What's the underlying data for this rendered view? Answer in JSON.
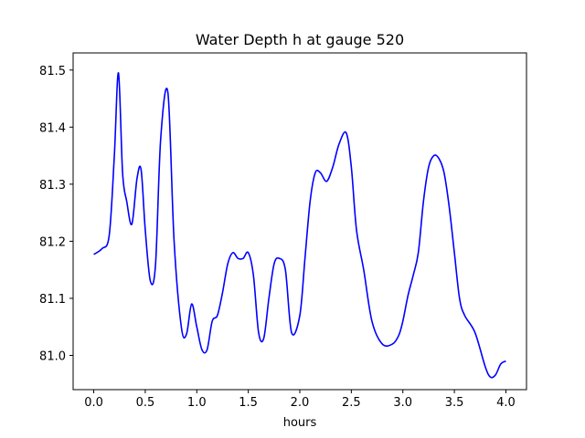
{
  "chart_data": {
    "type": "line",
    "title": "Water Depth h at gauge 520",
    "xlabel": "hours",
    "ylabel": "",
    "xlim": [
      -0.2,
      4.2
    ],
    "ylim": [
      80.94,
      81.53
    ],
    "xticks": [
      0.0,
      0.5,
      1.0,
      1.5,
      2.0,
      2.5,
      3.0,
      3.5,
      4.0
    ],
    "xtick_labels": [
      "0.0",
      "0.5",
      "1.0",
      "1.5",
      "2.0",
      "2.5",
      "3.0",
      "3.5",
      "4.0"
    ],
    "yticks": [
      81.0,
      81.1,
      81.2,
      81.3,
      81.4,
      81.5
    ],
    "ytick_labels": [
      "81.0",
      "81.1",
      "81.2",
      "81.3",
      "81.4",
      "81.5"
    ],
    "grid": false,
    "series": [
      {
        "color": "#0000ff",
        "x": [
          0.0,
          0.08,
          0.15,
          0.2,
          0.24,
          0.28,
          0.32,
          0.37,
          0.42,
          0.46,
          0.5,
          0.55,
          0.6,
          0.65,
          0.72,
          0.78,
          0.85,
          0.9,
          0.95,
          1.0,
          1.05,
          1.1,
          1.15,
          1.2,
          1.25,
          1.3,
          1.35,
          1.4,
          1.45,
          1.5,
          1.55,
          1.6,
          1.65,
          1.7,
          1.75,
          1.8,
          1.86,
          1.92,
          2.0,
          2.05,
          2.1,
          2.15,
          2.2,
          2.26,
          2.32,
          2.38,
          2.45,
          2.5,
          2.55,
          2.62,
          2.7,
          2.8,
          2.9,
          2.96,
          3.0,
          3.05,
          3.1,
          3.15,
          3.2,
          3.25,
          3.3,
          3.35,
          3.4,
          3.45,
          3.5,
          3.55,
          3.6,
          3.7,
          3.8,
          3.85,
          3.9,
          3.95,
          4.0
        ],
        "y": [
          81.177,
          81.187,
          81.21,
          81.35,
          81.495,
          81.32,
          81.27,
          81.23,
          81.31,
          81.325,
          81.22,
          81.13,
          81.16,
          81.38,
          81.46,
          81.2,
          81.05,
          81.037,
          81.09,
          81.05,
          81.01,
          81.01,
          81.06,
          81.07,
          81.11,
          81.16,
          81.18,
          81.17,
          81.17,
          81.18,
          81.14,
          81.04,
          81.03,
          81.1,
          81.16,
          81.17,
          81.15,
          81.04,
          81.07,
          81.17,
          81.27,
          81.32,
          81.32,
          81.305,
          81.33,
          81.37,
          81.39,
          81.33,
          81.22,
          81.15,
          81.06,
          81.02,
          81.02,
          81.035,
          81.06,
          81.105,
          81.14,
          81.18,
          81.27,
          81.33,
          81.35,
          81.345,
          81.32,
          81.26,
          81.18,
          81.1,
          81.07,
          81.04,
          80.98,
          80.962,
          80.966,
          80.985,
          80.99
        ]
      }
    ]
  }
}
